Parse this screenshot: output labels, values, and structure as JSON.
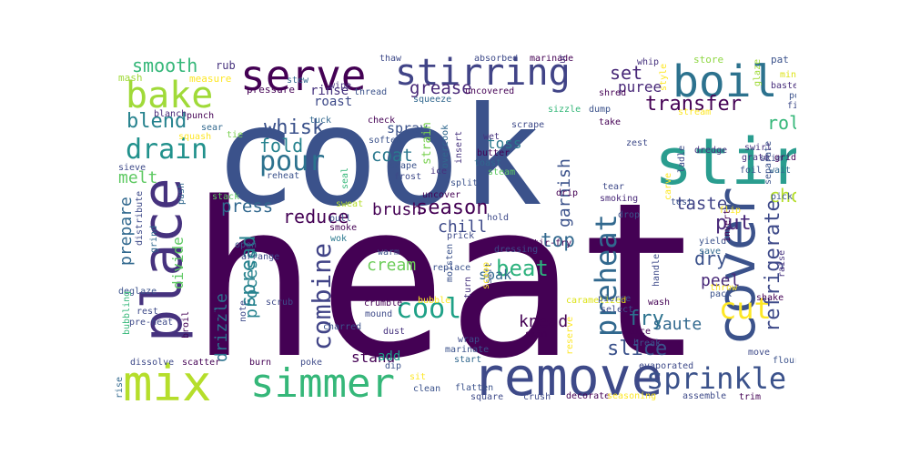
{
  "words": [
    {
      "text": "heat",
      "color": "#440154"
    },
    {
      "text": "cook",
      "color": "#3b528b"
    },
    {
      "text": "stir",
      "color": "#2a9d8f"
    },
    {
      "text": "remove",
      "color": "#3e4a89"
    },
    {
      "text": "place",
      "color": "#46327e"
    },
    {
      "text": "cover",
      "color": "#3b528b"
    },
    {
      "text": "serve",
      "color": "#440154"
    },
    {
      "text": "boil",
      "color": "#2c728e"
    },
    {
      "text": "mix",
      "color": "#b5de2b"
    },
    {
      "text": "simmer",
      "color": "#35b779"
    },
    {
      "text": "stirring",
      "color": "#414487"
    },
    {
      "text": "bake",
      "color": "#a0da39"
    },
    {
      "text": "sprinkle",
      "color": "#3b528b"
    },
    {
      "text": "drain",
      "color": "#21918c"
    },
    {
      "text": "pour",
      "color": "#2c728e"
    },
    {
      "text": "cool",
      "color": "#1fa187"
    },
    {
      "text": "combine",
      "color": "#414487"
    },
    {
      "text": "preheat",
      "color": "#31688e"
    },
    {
      "text": "beat",
      "color": "#2db27d"
    },
    {
      "text": "cut",
      "color": "#fde725"
    },
    {
      "text": "refrigerate",
      "color": "#3e4a89"
    },
    {
      "text": "transfer",
      "color": "#440154"
    },
    {
      "text": "season",
      "color": "#440154"
    },
    {
      "text": "smooth",
      "color": "#35b779"
    },
    {
      "text": "blend",
      "color": "#26828e"
    },
    {
      "text": "whisk",
      "color": "#3b528b"
    },
    {
      "text": "fold",
      "color": "#26828e"
    },
    {
      "text": "spread",
      "color": "#26828e"
    },
    {
      "text": "set",
      "color": "#482878"
    },
    {
      "text": "grease",
      "color": "#482878"
    },
    {
      "text": "fry",
      "color": "#2c728e"
    },
    {
      "text": "melt",
      "color": "#5ec962"
    },
    {
      "text": "press",
      "color": "#31688e"
    },
    {
      "text": "reduce",
      "color": "#440154"
    },
    {
      "text": "brush",
      "color": "#440154"
    },
    {
      "text": "top",
      "color": "#31688e"
    },
    {
      "text": "dry",
      "color": "#3b528b"
    },
    {
      "text": "chop",
      "color": "#b5de2b"
    },
    {
      "text": "taste",
      "color": "#414487"
    },
    {
      "text": "put",
      "color": "#482878"
    },
    {
      "text": "roll",
      "color": "#35b779"
    },
    {
      "text": "slice",
      "color": "#3b528b"
    },
    {
      "text": "saute",
      "color": "#31688e"
    },
    {
      "text": "peel",
      "color": "#482878"
    },
    {
      "text": "knead",
      "color": "#440154"
    },
    {
      "text": "prepare",
      "color": "#31688e"
    },
    {
      "text": "process",
      "color": "#26828e"
    },
    {
      "text": "drizzle",
      "color": "#2c728e"
    },
    {
      "text": "divide",
      "color": "#5ec962"
    },
    {
      "text": "garnish",
      "color": "#3b528b"
    },
    {
      "text": "coat",
      "color": "#2a788e"
    },
    {
      "text": "chill",
      "color": "#3e4a89"
    },
    {
      "text": "cream",
      "color": "#6ccd5a"
    },
    {
      "text": "stand",
      "color": "#440154"
    },
    {
      "text": "puree",
      "color": "#482878"
    },
    {
      "text": "toss",
      "color": "#2a788e"
    },
    {
      "text": "rinse",
      "color": "#46327e"
    },
    {
      "text": "spray",
      "color": "#3b528b"
    },
    {
      "text": "soak",
      "color": "#31688e"
    },
    {
      "text": "strain",
      "color": "#7ad151"
    },
    {
      "text": "roast",
      "color": "#3e4a89"
    },
    {
      "text": "add",
      "color": "#1f9e89"
    },
    {
      "text": "rub",
      "color": "#46327e"
    },
    {
      "text": "mash",
      "color": "#a0da39"
    },
    {
      "text": "measure",
      "color": "#fde725"
    },
    {
      "text": "pressure",
      "color": "#440154"
    },
    {
      "text": "stew",
      "color": "#31688e"
    },
    {
      "text": "wipe",
      "color": "#46327e"
    },
    {
      "text": "thread",
      "color": "#3b528b"
    },
    {
      "text": "thaw",
      "color": "#3e4a89"
    },
    {
      "text": "absorbed",
      "color": "#3e4a89"
    },
    {
      "text": "marinade",
      "color": "#440154"
    },
    {
      "text": "whip",
      "color": "#46327e"
    },
    {
      "text": "style",
      "color": "#fde725"
    },
    {
      "text": "store",
      "color": "#8fd744"
    },
    {
      "text": "pat",
      "color": "#3b528b"
    },
    {
      "text": "glaze",
      "color": "#a0da39"
    },
    {
      "text": "mince",
      "color": "#dde318"
    },
    {
      "text": "baste",
      "color": "#472d7b"
    },
    {
      "text": "fill",
      "color": "#3e4a89"
    },
    {
      "text": "pop",
      "color": "#3b528b"
    },
    {
      "text": "uncovered",
      "color": "#440154"
    },
    {
      "text": "squeeze",
      "color": "#31688e"
    },
    {
      "text": "unroll",
      "color": "#46327e"
    },
    {
      "text": "shred",
      "color": "#440154"
    },
    {
      "text": "dump",
      "color": "#3b528b"
    },
    {
      "text": "stream",
      "color": "#fde725"
    },
    {
      "text": "sizzle",
      "color": "#35b779"
    },
    {
      "text": "take",
      "color": "#440154"
    },
    {
      "text": "blanch",
      "color": "#482878"
    },
    {
      "text": "punch",
      "color": "#440154"
    },
    {
      "text": "sear",
      "color": "#31688e"
    },
    {
      "text": "squash",
      "color": "#fde725"
    },
    {
      "text": "tie",
      "color": "#7ad151"
    },
    {
      "text": "check",
      "color": "#440154"
    },
    {
      "text": "scrape",
      "color": "#3e4a89"
    },
    {
      "text": "wet",
      "color": "#46327e"
    },
    {
      "text": "butter",
      "color": "#440154"
    },
    {
      "text": "toast",
      "color": "#31688e"
    },
    {
      "text": "soften",
      "color": "#3b528b"
    },
    {
      "text": "tuck",
      "color": "#31688e"
    },
    {
      "text": "overcook",
      "color": "#31688e"
    },
    {
      "text": "insert",
      "color": "#46327e"
    },
    {
      "text": "steam",
      "color": "#5ec962"
    },
    {
      "text": "shape",
      "color": "#3b528b"
    },
    {
      "text": "frost",
      "color": "#3e4a89"
    },
    {
      "text": "ice",
      "color": "#46327e"
    },
    {
      "text": "split",
      "color": "#3b528b"
    },
    {
      "text": "uncover",
      "color": "#440154"
    },
    {
      "text": "reheat",
      "color": "#3b528b"
    },
    {
      "text": "seal",
      "color": "#35b779"
    },
    {
      "text": "sieve",
      "color": "#3e4a89"
    },
    {
      "text": "push",
      "color": "#31688e"
    },
    {
      "text": "stack",
      "color": "#5ec962"
    },
    {
      "text": "pull",
      "color": "#3b528b"
    },
    {
      "text": "sweat",
      "color": "#b5de2b"
    },
    {
      "text": "distribute",
      "color": "#3e4a89"
    },
    {
      "text": "smoke",
      "color": "#440154"
    },
    {
      "text": "wok",
      "color": "#2a788e"
    },
    {
      "text": "drip",
      "color": "#440154"
    },
    {
      "text": "tear",
      "color": "#3e4a89"
    },
    {
      "text": "smoking",
      "color": "#482878"
    },
    {
      "text": "carve",
      "color": "#fde725"
    },
    {
      "text": "drop",
      "color": "#3b528b"
    },
    {
      "text": "flip",
      "color": "#fde725"
    },
    {
      "text": "yield",
      "color": "#3b528b"
    },
    {
      "text": "invert",
      "color": "#440154"
    },
    {
      "text": "raise",
      "color": "#46327e"
    },
    {
      "text": "pick",
      "color": "#3b528b"
    },
    {
      "text": "wait",
      "color": "#31688e"
    },
    {
      "text": "griddle",
      "color": "#440154"
    },
    {
      "text": "separate",
      "color": "#3b528b"
    },
    {
      "text": "dredge",
      "color": "#46327e"
    },
    {
      "text": "swirl",
      "color": "#46327e"
    },
    {
      "text": "grate",
      "color": "#46327e"
    },
    {
      "text": "foil",
      "color": "#3b528b"
    },
    {
      "text": "skim",
      "color": "#3e4a89"
    },
    {
      "text": "zest",
      "color": "#3e4a89"
    },
    {
      "text": "ladle",
      "color": "#3e4a89"
    },
    {
      "text": "test",
      "color": "#3b528b"
    },
    {
      "text": "grind",
      "color": "#31688e"
    },
    {
      "text": "open",
      "color": "#3b528b"
    },
    {
      "text": "arrange",
      "color": "#3e4a89"
    },
    {
      "text": "deglaze",
      "color": "#3b528b"
    },
    {
      "text": "note",
      "color": "#3e4a89"
    },
    {
      "text": "scrub",
      "color": "#3e4a89"
    },
    {
      "text": "stuff",
      "color": "#440154"
    },
    {
      "text": "rest",
      "color": "#3e4a89"
    },
    {
      "text": "pre-heat",
      "color": "#3e4a89"
    },
    {
      "text": "bubbling",
      "color": "#35b779"
    },
    {
      "text": "broil",
      "color": "#440154"
    },
    {
      "text": "dissolve",
      "color": "#3e4a89"
    },
    {
      "text": "scatter",
      "color": "#440154"
    },
    {
      "text": "burn",
      "color": "#440154"
    },
    {
      "text": "poke",
      "color": "#3e4a89"
    },
    {
      "text": "charred",
      "color": "#3b528b"
    },
    {
      "text": "rise",
      "color": "#31688e"
    },
    {
      "text": "warm",
      "color": "#3b528b"
    },
    {
      "text": "replace",
      "color": "#3b528b"
    },
    {
      "text": "moisten",
      "color": "#3b528b"
    },
    {
      "text": "dressing",
      "color": "#3e4a89"
    },
    {
      "text": "sift",
      "color": "#3b528b"
    },
    {
      "text": "scoop",
      "color": "#fde725"
    },
    {
      "text": "turn",
      "color": "#46327e"
    },
    {
      "text": "stir-fry",
      "color": "#440154"
    },
    {
      "text": "prick",
      "color": "#3e4a89"
    },
    {
      "text": "hold",
      "color": "#3e4a89"
    },
    {
      "text": "crumble",
      "color": "#440154"
    },
    {
      "text": "mound",
      "color": "#3e4a89"
    },
    {
      "text": "bubble",
      "color": "#fde725"
    },
    {
      "text": "caramelized",
      "color": "#dde318"
    },
    {
      "text": "dust",
      "color": "#46327e"
    },
    {
      "text": "reserve",
      "color": "#fde725"
    },
    {
      "text": "pierce",
      "color": "#3b528b"
    },
    {
      "text": "select",
      "color": "#3e4a89"
    },
    {
      "text": "dice",
      "color": "#440154"
    },
    {
      "text": "break",
      "color": "#3b528b"
    },
    {
      "text": "skin",
      "color": "#440154"
    },
    {
      "text": "wrap",
      "color": "#3e4a89"
    },
    {
      "text": "marinate",
      "color": "#3b528b"
    },
    {
      "text": "start",
      "color": "#31688e"
    },
    {
      "text": "dip",
      "color": "#3b528b"
    },
    {
      "text": "sit",
      "color": "#fde725"
    },
    {
      "text": "clean",
      "color": "#3b528b"
    },
    {
      "text": "flatten",
      "color": "#3b528b"
    },
    {
      "text": "square",
      "color": "#3e4a89"
    },
    {
      "text": "crush",
      "color": "#3e4a89"
    },
    {
      "text": "decorate",
      "color": "#440154"
    },
    {
      "text": "seasoning",
      "color": "#fde725"
    },
    {
      "text": "evaporated",
      "color": "#3e4a89"
    },
    {
      "text": "assemble",
      "color": "#3e4a89"
    },
    {
      "text": "trim",
      "color": "#440154"
    },
    {
      "text": "handle",
      "color": "#3e4a89"
    },
    {
      "text": "wash",
      "color": "#440154"
    },
    {
      "text": "save",
      "color": "#31688e"
    },
    {
      "text": "throw",
      "color": "#fde725"
    },
    {
      "text": "pack",
      "color": "#3b528b"
    },
    {
      "text": "shake",
      "color": "#440154"
    },
    {
      "text": "move",
      "color": "#3e4a89"
    },
    {
      "text": "floured",
      "color": "#3b528b"
    }
  ]
}
